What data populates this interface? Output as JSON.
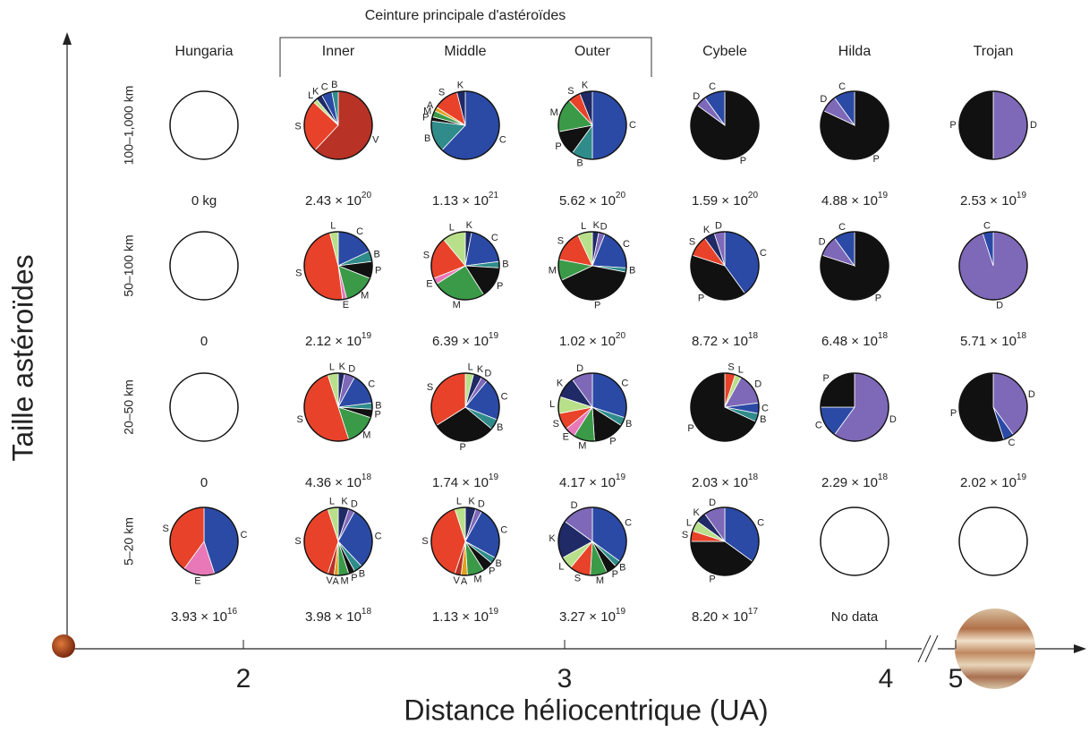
{
  "header": "Ceinture principale d'astéroïdes",
  "y_title": "Taille astéroïdes",
  "x_title": "Distance héliocentrique (UA)",
  "xticks": [
    2,
    3,
    4,
    5
  ],
  "columns": [
    "Hungaria",
    "Inner",
    "Middle",
    "Outer",
    "Cybele",
    "Hilda",
    "Trojan"
  ],
  "class_colors": {
    "S": "#e8432a",
    "C": "#2b4aa6",
    "B": "#2f8c8a",
    "K": "#1f2a66",
    "D": "#7e68b8",
    "P": "#111111",
    "M": "#3a9a48",
    "L": "#b8e08a",
    "E": "#e878b8",
    "V": "#b83226",
    "A": "#e0a020"
  },
  "rows": [
    {
      "label": "100–1,000 km",
      "cells": [
        {
          "slices": [],
          "mass": {
            "text": "0 kg"
          }
        },
        {
          "slices": [
            {
              "class": "V",
              "value": 62
            },
            {
              "class": "S",
              "value": 25
            },
            {
              "class": "L",
              "value": 2
            },
            {
              "class": "K",
              "value": 3
            },
            {
              "class": "C",
              "value": 5
            },
            {
              "class": "B",
              "value": 3
            }
          ],
          "mass": {
            "text": "2.43 × 10",
            "exp": "20"
          }
        },
        {
          "slices": [
            {
              "class": "C",
              "value": 62
            },
            {
              "class": "B",
              "value": 15
            },
            {
              "class": "P",
              "value": 2
            },
            {
              "class": "M",
              "value": 3
            },
            {
              "class": "A",
              "value": 2
            },
            {
              "class": "S",
              "value": 12
            },
            {
              "class": "K",
              "value": 4
            }
          ],
          "mass": {
            "text": "1.13 × 10",
            "exp": "21"
          }
        },
        {
          "slices": [
            {
              "class": "C",
              "value": 50
            },
            {
              "class": "B",
              "value": 10
            },
            {
              "class": "P",
              "value": 12
            },
            {
              "class": "M",
              "value": 16
            },
            {
              "class": "S",
              "value": 6
            },
            {
              "class": "K",
              "value": 6
            }
          ],
          "mass": {
            "text": "5.62 × 10",
            "exp": "20"
          }
        },
        {
          "slices": [
            {
              "class": "P",
              "value": 85
            },
            {
              "class": "D",
              "value": 5
            },
            {
              "class": "C",
              "value": 10
            }
          ],
          "mass": {
            "text": "1.59 × 10",
            "exp": "20"
          }
        },
        {
          "slices": [
            {
              "class": "P",
              "value": 82
            },
            {
              "class": "D",
              "value": 8
            },
            {
              "class": "C",
              "value": 10
            }
          ],
          "mass": {
            "text": "4.88 × 10",
            "exp": "19"
          }
        },
        {
          "slices": [
            {
              "class": "D",
              "value": 50
            },
            {
              "class": "P",
              "value": 50
            }
          ],
          "mass": {
            "text": "2.53 × 10",
            "exp": "19"
          }
        }
      ]
    },
    {
      "label": "50–100 km",
      "cells": [
        {
          "slices": [],
          "mass": {
            "text": "0"
          }
        },
        {
          "slices": [
            {
              "class": "C",
              "value": 18
            },
            {
              "class": "B",
              "value": 5
            },
            {
              "class": "P",
              "value": 8
            },
            {
              "class": "M",
              "value": 15
            },
            {
              "class": "E",
              "value": 2
            },
            {
              "class": "S",
              "value": 48
            },
            {
              "class": "L",
              "value": 4
            }
          ],
          "mass": {
            "text": "2.12 × 10",
            "exp": "19"
          }
        },
        {
          "slices": [
            {
              "class": "K",
              "value": 3
            },
            {
              "class": "C",
              "value": 20
            },
            {
              "class": "B",
              "value": 3
            },
            {
              "class": "P",
              "value": 15
            },
            {
              "class": "M",
              "value": 25
            },
            {
              "class": "E",
              "value": 3
            },
            {
              "class": "S",
              "value": 20
            },
            {
              "class": "L",
              "value": 11
            }
          ],
          "mass": {
            "text": "6.39 × 10",
            "exp": "19"
          }
        },
        {
          "slices": [
            {
              "class": "K",
              "value": 3
            },
            {
              "class": "D",
              "value": 3
            },
            {
              "class": "C",
              "value": 20
            },
            {
              "class": "B",
              "value": 2
            },
            {
              "class": "P",
              "value": 40
            },
            {
              "class": "M",
              "value": 10
            },
            {
              "class": "S",
              "value": 15
            },
            {
              "class": "L",
              "value": 7
            }
          ],
          "mass": {
            "text": "1.02 × 10",
            "exp": "20"
          }
        },
        {
          "slices": [
            {
              "class": "C",
              "value": 40
            },
            {
              "class": "P",
              "value": 40
            },
            {
              "class": "S",
              "value": 10
            },
            {
              "class": "K",
              "value": 5
            },
            {
              "class": "D",
              "value": 5
            }
          ],
          "mass": {
            "text": "8.72 × 10",
            "exp": "18"
          }
        },
        {
          "slices": [
            {
              "class": "P",
              "value": 80
            },
            {
              "class": "D",
              "value": 10
            },
            {
              "class": "C",
              "value": 10
            }
          ],
          "mass": {
            "text": "6.48 × 10",
            "exp": "18"
          }
        },
        {
          "slices": [
            {
              "class": "D",
              "value": 95
            },
            {
              "class": "C",
              "value": 5
            }
          ],
          "mass": {
            "text": "5.71 × 10",
            "exp": "18"
          }
        }
      ]
    },
    {
      "label": "20–50 km",
      "cells": [
        {
          "slices": [],
          "mass": {
            "text": "0"
          }
        },
        {
          "slices": [
            {
              "class": "K",
              "value": 3
            },
            {
              "class": "D",
              "value": 5
            },
            {
              "class": "C",
              "value": 15
            },
            {
              "class": "B",
              "value": 3
            },
            {
              "class": "P",
              "value": 4
            },
            {
              "class": "M",
              "value": 15
            },
            {
              "class": "S",
              "value": 50
            },
            {
              "class": "L",
              "value": 5
            }
          ],
          "mass": {
            "text": "4.36 × 10",
            "exp": "18"
          }
        },
        {
          "slices": [
            {
              "class": "L",
              "value": 4
            },
            {
              "class": "K",
              "value": 4
            },
            {
              "class": "D",
              "value": 3
            },
            {
              "class": "C",
              "value": 20
            },
            {
              "class": "B",
              "value": 5
            },
            {
              "class": "P",
              "value": 30
            },
            {
              "class": "S",
              "value": 34
            }
          ],
          "mass": {
            "text": "1.74 × 10",
            "exp": "19"
          }
        },
        {
          "slices": [
            {
              "class": "C",
              "value": 30
            },
            {
              "class": "B",
              "value": 4
            },
            {
              "class": "P",
              "value": 15
            },
            {
              "class": "M",
              "value": 10
            },
            {
              "class": "E",
              "value": 5
            },
            {
              "class": "S",
              "value": 8
            },
            {
              "class": "L",
              "value": 8
            },
            {
              "class": "K",
              "value": 10
            },
            {
              "class": "D",
              "value": 10
            }
          ],
          "mass": {
            "text": "4.17 × 10",
            "exp": "19"
          }
        },
        {
          "slices": [
            {
              "class": "S",
              "value": 5
            },
            {
              "class": "L",
              "value": 3
            },
            {
              "class": "D",
              "value": 15
            },
            {
              "class": "C",
              "value": 5
            },
            {
              "class": "B",
              "value": 4
            },
            {
              "class": "P",
              "value": 68
            }
          ],
          "mass": {
            "text": "2.03 × 10",
            "exp": "18"
          }
        },
        {
          "slices": [
            {
              "class": "D",
              "value": 60
            },
            {
              "class": "C",
              "value": 15
            },
            {
              "class": "P",
              "value": 25
            }
          ],
          "mass": {
            "text": "2.29 × 10",
            "exp": "18"
          }
        },
        {
          "slices": [
            {
              "class": "D",
              "value": 40
            },
            {
              "class": "C",
              "value": 5
            },
            {
              "class": "P",
              "value": 55
            }
          ],
          "mass": {
            "text": "2.02 × 10",
            "exp": "19"
          }
        }
      ]
    },
    {
      "label": "5–20 km",
      "cells": [
        {
          "slices": [
            {
              "class": "C",
              "value": 45
            },
            {
              "class": "E",
              "value": 15
            },
            {
              "class": "S",
              "value": 40
            }
          ],
          "mass": {
            "text": "3.93 × 10",
            "exp": "16"
          }
        },
        {
          "slices": [
            {
              "class": "K",
              "value": 5
            },
            {
              "class": "D",
              "value": 3
            },
            {
              "class": "C",
              "value": 30
            },
            {
              "class": "B",
              "value": 4
            },
            {
              "class": "P",
              "value": 3
            },
            {
              "class": "M",
              "value": 5
            },
            {
              "class": "A",
              "value": 2
            },
            {
              "class": "V",
              "value": 3
            },
            {
              "class": "S",
              "value": 40
            },
            {
              "class": "L",
              "value": 5
            }
          ],
          "mass": {
            "text": "3.98 × 10",
            "exp": "18"
          }
        },
        {
          "slices": [
            {
              "class": "K",
              "value": 5
            },
            {
              "class": "D",
              "value": 3
            },
            {
              "class": "C",
              "value": 25
            },
            {
              "class": "B",
              "value": 3
            },
            {
              "class": "P",
              "value": 5
            },
            {
              "class": "M",
              "value": 8
            },
            {
              "class": "A",
              "value": 3
            },
            {
              "class": "V",
              "value": 3
            },
            {
              "class": "S",
              "value": 40
            },
            {
              "class": "L",
              "value": 5
            }
          ],
          "mass": {
            "text": "1.13 × 10",
            "exp": "19"
          }
        },
        {
          "slices": [
            {
              "class": "C",
              "value": 35
            },
            {
              "class": "B",
              "value": 3
            },
            {
              "class": "P",
              "value": 5
            },
            {
              "class": "M",
              "value": 8
            },
            {
              "class": "S",
              "value": 10
            },
            {
              "class": "L",
              "value": 6
            },
            {
              "class": "K",
              "value": 18
            },
            {
              "class": "D",
              "value": 15
            }
          ],
          "mass": {
            "text": "3.27 × 10",
            "exp": "19"
          }
        },
        {
          "slices": [
            {
              "class": "C",
              "value": 35
            },
            {
              "class": "P",
              "value": 40
            },
            {
              "class": "S",
              "value": 5
            },
            {
              "class": "L",
              "value": 5
            },
            {
              "class": "K",
              "value": 5
            },
            {
              "class": "D",
              "value": 10
            }
          ],
          "mass": {
            "text": "8.20 × 10",
            "exp": "17"
          }
        },
        {
          "slices": [],
          "mass": {
            "text": "No data"
          }
        },
        {
          "slices": [],
          "mass": {}
        }
      ]
    }
  ]
}
